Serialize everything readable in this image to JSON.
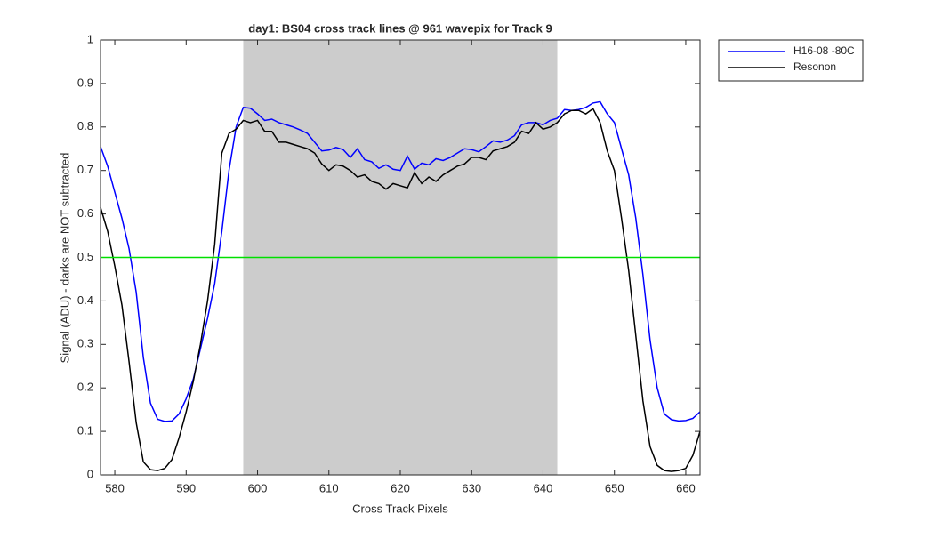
{
  "chart_data": {
    "type": "line",
    "title": "day1: BS04  cross track lines @ 961 wavepix for Track 9",
    "x_label": "Cross Track Pixels",
    "y_label": "Signal (ADU) - darks are NOT subtracted",
    "x": [
      578,
      579,
      580,
      581,
      582,
      583,
      584,
      585,
      586,
      587,
      588,
      589,
      590,
      591,
      592,
      593,
      594,
      595,
      596,
      597,
      598,
      599,
      600,
      601,
      602,
      603,
      604,
      605,
      606,
      607,
      608,
      609,
      610,
      611,
      612,
      613,
      614,
      615,
      616,
      617,
      618,
      619,
      620,
      621,
      622,
      623,
      624,
      625,
      626,
      627,
      628,
      629,
      630,
      631,
      632,
      633,
      634,
      635,
      636,
      637,
      638,
      639,
      640,
      641,
      642,
      643,
      644,
      645,
      646,
      647,
      648,
      649,
      650,
      651,
      652,
      653,
      654,
      655,
      656,
      657,
      658,
      659,
      660,
      661,
      662
    ],
    "series": [
      {
        "name": "H16-08 -80C",
        "color": "#0000ff",
        "values": [
          0.755,
          0.71,
          0.65,
          0.59,
          0.52,
          0.42,
          0.27,
          0.165,
          0.128,
          0.123,
          0.124,
          0.14,
          0.175,
          0.22,
          0.29,
          0.36,
          0.44,
          0.56,
          0.7,
          0.8,
          0.845,
          0.843,
          0.83,
          0.815,
          0.818,
          0.81,
          0.805,
          0.8,
          0.793,
          0.785,
          0.765,
          0.745,
          0.747,
          0.753,
          0.748,
          0.73,
          0.75,
          0.725,
          0.72,
          0.705,
          0.713,
          0.703,
          0.7,
          0.733,
          0.703,
          0.717,
          0.713,
          0.727,
          0.723,
          0.73,
          0.74,
          0.75,
          0.748,
          0.743,
          0.755,
          0.768,
          0.765,
          0.77,
          0.78,
          0.805,
          0.81,
          0.81,
          0.805,
          0.815,
          0.82,
          0.84,
          0.838,
          0.84,
          0.845,
          0.855,
          0.858,
          0.83,
          0.81,
          0.75,
          0.69,
          0.59,
          0.46,
          0.31,
          0.2,
          0.14,
          0.127,
          0.124,
          0.125,
          0.13,
          0.145
        ]
      },
      {
        "name": "Resonon",
        "color": "#000000",
        "values": [
          0.615,
          0.56,
          0.48,
          0.39,
          0.26,
          0.12,
          0.03,
          0.012,
          0.01,
          0.015,
          0.035,
          0.085,
          0.145,
          0.215,
          0.3,
          0.4,
          0.53,
          0.74,
          0.785,
          0.795,
          0.815,
          0.81,
          0.815,
          0.79,
          0.79,
          0.765,
          0.765,
          0.76,
          0.755,
          0.75,
          0.74,
          0.715,
          0.7,
          0.713,
          0.71,
          0.7,
          0.685,
          0.69,
          0.675,
          0.67,
          0.657,
          0.67,
          0.665,
          0.66,
          0.695,
          0.67,
          0.685,
          0.675,
          0.69,
          0.7,
          0.71,
          0.715,
          0.73,
          0.73,
          0.725,
          0.745,
          0.75,
          0.755,
          0.765,
          0.79,
          0.785,
          0.81,
          0.795,
          0.8,
          0.81,
          0.83,
          0.838,
          0.838,
          0.83,
          0.842,
          0.81,
          0.745,
          0.7,
          0.59,
          0.47,
          0.32,
          0.17,
          0.065,
          0.022,
          0.01,
          0.008,
          0.01,
          0.015,
          0.045,
          0.1
        ]
      }
    ],
    "shaded_xrange": [
      598,
      642
    ],
    "shaded_color": "#cccccc",
    "hline": 0.5,
    "hline_color": "#00e000",
    "xlim": [
      578,
      662
    ],
    "ylim": [
      0,
      1
    ],
    "xticks": [
      580,
      590,
      600,
      610,
      620,
      630,
      640,
      650,
      660
    ],
    "yticks": [
      0,
      0.1,
      0.2,
      0.3,
      0.4,
      0.5,
      0.6,
      0.7,
      0.8,
      0.9,
      1
    ],
    "legend": "northeastoutside"
  }
}
